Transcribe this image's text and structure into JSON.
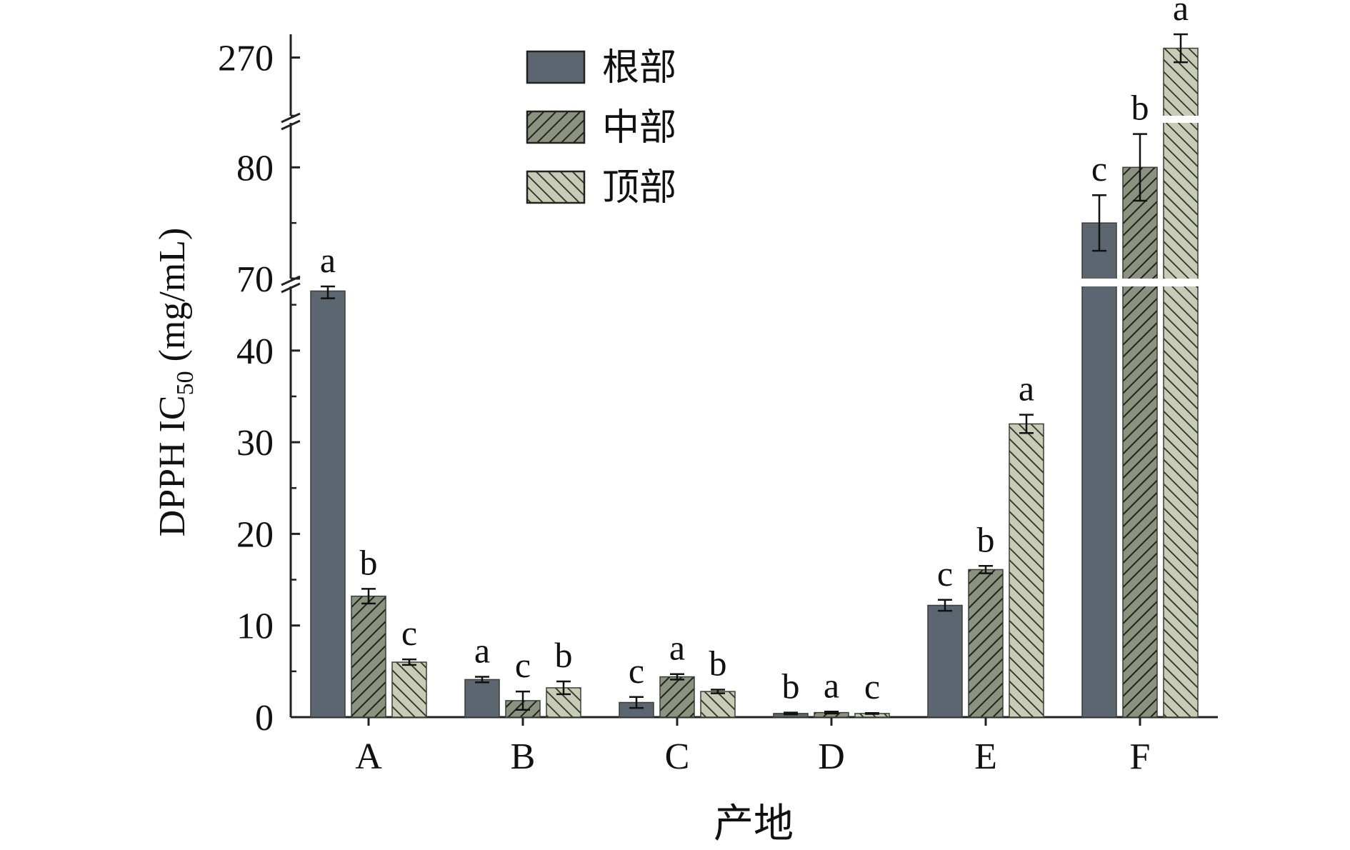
{
  "chart_data": {
    "type": "bar",
    "ylabel": "DPPH IC",
    "ylabel_subscript": "50",
    "ylabel_suffix": " (mg/mL)",
    "xlabel": "产地",
    "categories": [
      "A",
      "B",
      "C",
      "D",
      "E",
      "F"
    ],
    "y_axis_segments": [
      {
        "range": [
          0,
          47
        ],
        "ticks": [
          0,
          10,
          20,
          30,
          40
        ]
      },
      {
        "range": [
          70,
          84
        ],
        "ticks": [
          70,
          80
        ]
      },
      {
        "range": [
          265,
          272
        ],
        "ticks": [
          270
        ]
      }
    ],
    "legend_position": "top-left",
    "series": [
      {
        "name": "根部",
        "pattern": "solid",
        "color": "#5b6670",
        "values": [
          46.5,
          4.1,
          1.6,
          0.4,
          12.2,
          75.0
        ],
        "errors": [
          0.8,
          0.3,
          0.6,
          0.1,
          0.6,
          2.5
        ],
        "letters": [
          "a",
          "a",
          "c",
          "b",
          "c",
          "c"
        ]
      },
      {
        "name": "中部",
        "pattern": "forward-hatch",
        "color": "#8b9280",
        "values": [
          13.2,
          1.8,
          4.4,
          0.5,
          16.1,
          80.0
        ],
        "errors": [
          0.8,
          1.0,
          0.3,
          0.1,
          0.4,
          3.0
        ],
        "letters": [
          "b",
          "c",
          "a",
          "a",
          "b",
          "b"
        ]
      },
      {
        "name": "顶部",
        "pattern": "back-hatch",
        "color": "#c8cbb6",
        "values": [
          6.0,
          3.2,
          2.8,
          0.4,
          32.0,
          270.8
        ],
        "errors": [
          0.3,
          0.7,
          0.2,
          0.05,
          1.0,
          1.2
        ],
        "letters": [
          "c",
          "b",
          "b",
          "c",
          "a",
          "a"
        ]
      }
    ]
  }
}
